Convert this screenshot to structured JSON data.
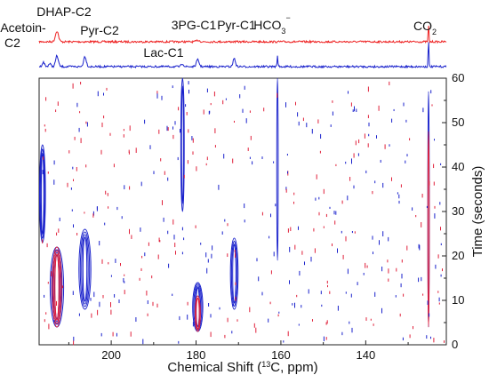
{
  "chart_data": [
    {
      "type": "line",
      "panel": "top-spectra",
      "x_reversed": true,
      "xlim": [
        217,
        121
      ],
      "grid": false,
      "series": [
        {
          "color": "#ee2222",
          "baseline": 0.72,
          "peaks": [
            {
              "x": 212.8,
              "h": 0.55,
              "w": 0.5
            },
            {
              "x": 179.5,
              "h": 0.08,
              "w": 0.5
            },
            {
              "x": 125.2,
              "h": 0.95,
              "w": 0.12
            }
          ]
        },
        {
          "color": "#1a22cc",
          "baseline": 0.18,
          "peaks": [
            {
              "x": 216.0,
              "h": 0.22,
              "w": 0.4
            },
            {
              "x": 214.5,
              "h": 0.15,
              "w": 0.4
            },
            {
              "x": 212.8,
              "h": 0.55,
              "w": 0.45
            },
            {
              "x": 206.2,
              "h": 0.52,
              "w": 0.45
            },
            {
              "x": 183.2,
              "h": 0.15,
              "w": 0.4
            },
            {
              "x": 179.6,
              "h": 0.35,
              "w": 0.45
            },
            {
              "x": 171.0,
              "h": 0.42,
              "w": 0.4
            },
            {
              "x": 160.8,
              "h": 0.55,
              "w": 0.15
            },
            {
              "x": 125.2,
              "h": 1.45,
              "w": 0.12
            }
          ]
        }
      ],
      "annotations": [
        {
          "text": "Acetoin-",
          "x": 214.5,
          "y_rel": 0.45
        },
        {
          "text": "C2",
          "x": 214.5,
          "y_rel": 0.7
        },
        {
          "text": "DHAP-C2",
          "x": 212.8,
          "y_rel": 0.08
        },
        {
          "text": "Pyr-C2",
          "x": 206.2,
          "y_rel": 0.35
        },
        {
          "text": "Lac-C1",
          "x": 185.5,
          "y_rel": 0.98
        },
        {
          "text": "3PG-C1",
          "x": 180.9,
          "y_rel": 0.3
        },
        {
          "text": "Pyr-C1",
          "x": 171.4,
          "y_rel": 0.3
        },
        {
          "text": "HCO",
          "x": 160.6,
          "y_rel": 0.3
        },
        {
          "text": "CO",
          "x": 122.3,
          "y_rel": 0.35
        }
      ],
      "annotation_sub": "3",
      "annotation_sup": "−",
      "annotation_co2_sub": "2"
    },
    {
      "type": "contour",
      "panel": "main",
      "x_reversed": true,
      "xlim": [
        217,
        121
      ],
      "ylim": [
        0,
        60
      ],
      "grid": false,
      "xlabel_pre": "Chemical Shift (",
      "xlabel_sup": "13",
      "xlabel_post": "C, ppm)",
      "ylabel": "Time (seconds)",
      "xticks": [
        200,
        180,
        160,
        140
      ],
      "yticks": [
        0,
        10,
        20,
        30,
        40,
        50,
        60
      ],
      "contours": [
        {
          "x": 216.2,
          "y0": 23,
          "y1": 45,
          "color": "#1a22cc",
          "n": 3,
          "w": 0.7
        },
        {
          "x": 212.8,
          "y0": 4,
          "y1": 22,
          "color": "#1a22cc",
          "n": 4,
          "w": 1.6
        },
        {
          "x": 212.8,
          "y0": 4,
          "y1": 22,
          "color": "#e0203a",
          "n": 3,
          "w": 1.1
        },
        {
          "x": 206.2,
          "y0": 8,
          "y1": 26,
          "color": "#1a22cc",
          "n": 4,
          "w": 1.4
        },
        {
          "x": 183.2,
          "y0": 30,
          "y1": 60,
          "color": "#1a22cc",
          "n": 2,
          "w": 0.4
        },
        {
          "x": 179.6,
          "y0": 3,
          "y1": 14,
          "color": "#1a22cc",
          "n": 4,
          "w": 1.2
        },
        {
          "x": 179.6,
          "y0": 3,
          "y1": 11,
          "color": "#e0203a",
          "n": 2,
          "w": 0.6
        },
        {
          "x": 171.0,
          "y0": 8,
          "y1": 24,
          "color": "#1a22cc",
          "n": 3,
          "w": 0.9
        },
        {
          "x": 160.8,
          "y0": 19,
          "y1": 60,
          "color": "#1a22cc",
          "n": 1,
          "w": 0.15
        },
        {
          "x": 125.2,
          "y0": 4,
          "y1": 57,
          "color": "#1a22cc",
          "n": 1,
          "w": 0.15
        },
        {
          "x": 125.2,
          "y0": 4,
          "y1": 48,
          "color": "#e0203a",
          "n": 1,
          "w": 0.1
        }
      ],
      "noise": {
        "count": 420,
        "colors": [
          "#e0203a",
          "#1a22cc"
        ]
      }
    }
  ]
}
